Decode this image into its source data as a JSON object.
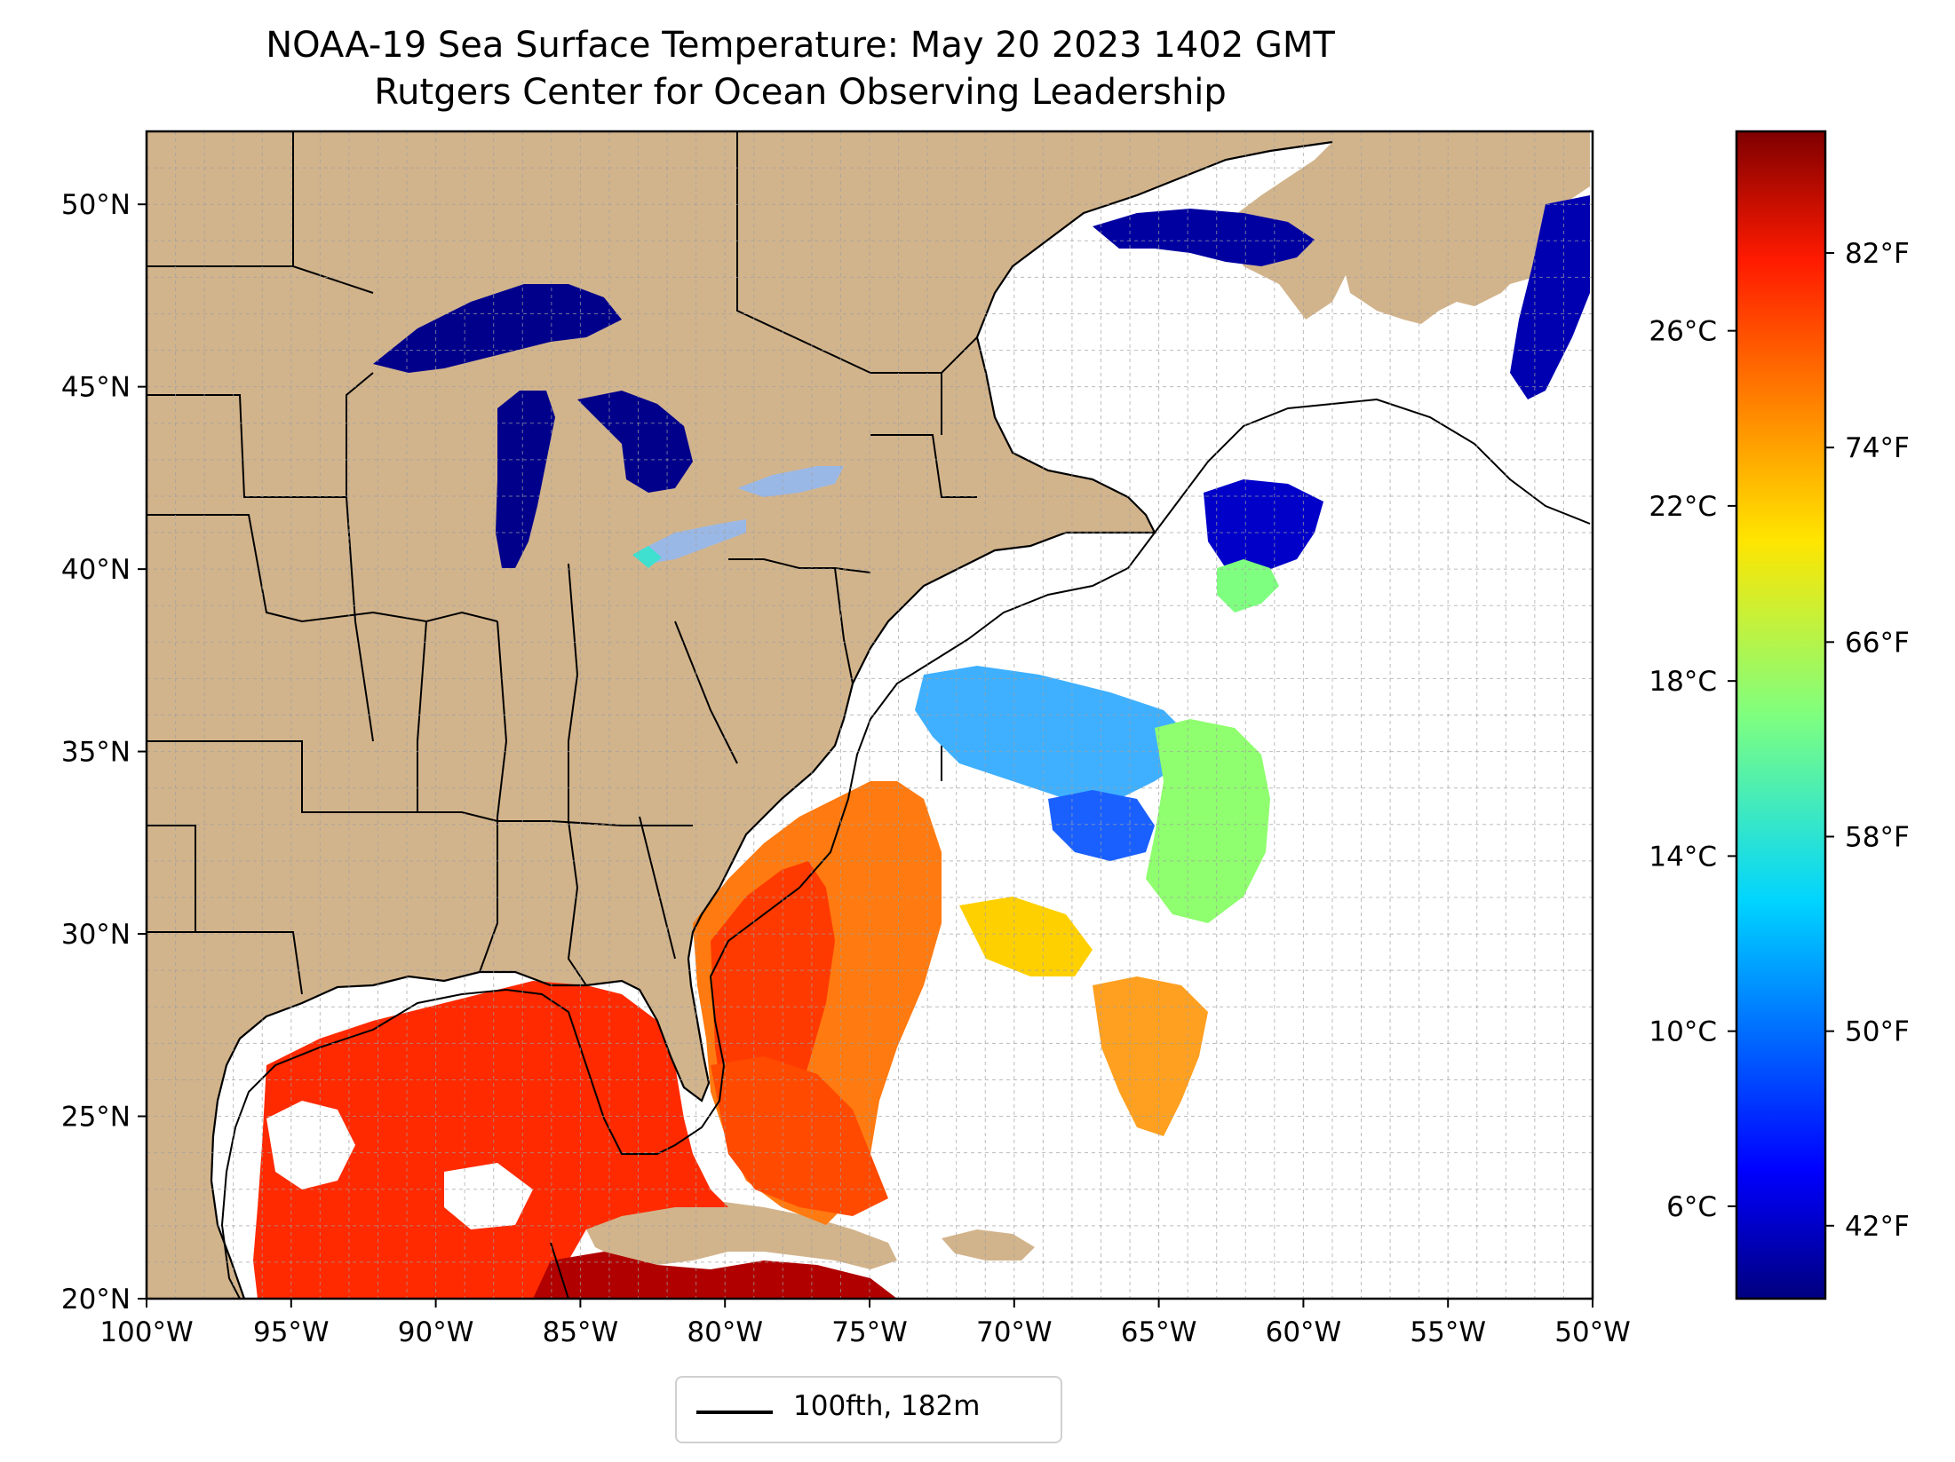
{
  "title": {
    "line1": "NOAA-19 Sea Surface Temperature: May 20 2023 1402 GMT",
    "line2": "Rutgers Center for Ocean Observing Leadership"
  },
  "map": {
    "lon_range": [
      -100,
      -50
    ],
    "lat_range": [
      20,
      52
    ],
    "lon_ticks": [
      {
        "value": -100,
        "label": "100°W"
      },
      {
        "value": -95,
        "label": "95°W"
      },
      {
        "value": -90,
        "label": "90°W"
      },
      {
        "value": -85,
        "label": "85°W"
      },
      {
        "value": -80,
        "label": "80°W"
      },
      {
        "value": -75,
        "label": "75°W"
      },
      {
        "value": -70,
        "label": "70°W"
      },
      {
        "value": -65,
        "label": "65°W"
      },
      {
        "value": -60,
        "label": "60°W"
      },
      {
        "value": -55,
        "label": "55°W"
      },
      {
        "value": -50,
        "label": "50°W"
      }
    ],
    "lat_ticks": [
      {
        "value": 20,
        "label": "20°N"
      },
      {
        "value": 25,
        "label": "25°N"
      },
      {
        "value": 30,
        "label": "30°N"
      },
      {
        "value": 35,
        "label": "35°N"
      },
      {
        "value": 40,
        "label": "40°N"
      },
      {
        "value": 45,
        "label": "45°N"
      },
      {
        "value": 50,
        "label": "50°N"
      }
    ],
    "land_color": "#d2b48c",
    "lake_color": "#9ab8e6",
    "grid": "dashed"
  },
  "legend": {
    "label": "100fth, 182m"
  },
  "colorbar": {
    "colormap": "jet",
    "range_f": [
      39,
      87
    ],
    "fahrenheit_ticks": [
      {
        "value": 42,
        "label": "42°F"
      },
      {
        "value": 50,
        "label": "50°F"
      },
      {
        "value": 58,
        "label": "58°F"
      },
      {
        "value": 66,
        "label": "66°F"
      },
      {
        "value": 74,
        "label": "74°F"
      },
      {
        "value": 82,
        "label": "82°F"
      }
    ],
    "celsius_ticks": [
      {
        "value": 6,
        "label": "6°C"
      },
      {
        "value": 10,
        "label": "10°C"
      },
      {
        "value": 14,
        "label": "14°C"
      },
      {
        "value": 18,
        "label": "18°C"
      },
      {
        "value": 22,
        "label": "22°C"
      },
      {
        "value": 26,
        "label": "26°C"
      }
    ]
  }
}
